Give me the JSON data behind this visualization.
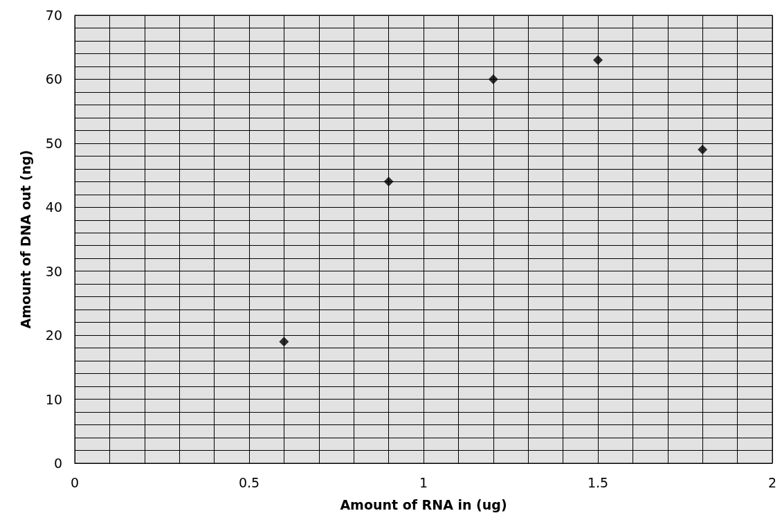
{
  "chart_data": {
    "type": "scatter",
    "xlabel": "Amount of RNA in (ug)",
    "ylabel": "Amount of DNA out (ng)",
    "x": [
      0.6,
      0.9,
      1.2,
      1.5,
      1.8
    ],
    "series": [
      {
        "color": "#000000",
        "values": [
          19,
          44,
          60,
          63,
          49
        ]
      }
    ],
    "marker": "diamond",
    "grid": true,
    "xlim": [
      0,
      2
    ],
    "xticks": [
      0,
      {
        "value": 0.1,
        "label": null
      },
      {
        "value": 0.2,
        "label": null
      },
      {
        "value": 0.3,
        "label": null
      },
      {
        "value": 0.4,
        "label": null
      },
      0.5,
      {
        "value": 0.6,
        "label": null
      },
      {
        "value": 0.7,
        "label": null
      },
      {
        "value": 0.8,
        "label": null
      },
      {
        "value": 0.9,
        "label": null
      },
      1,
      {
        "value": 1.1,
        "label": null
      },
      {
        "value": 1.2,
        "label": null
      },
      {
        "value": 1.3,
        "label": null
      },
      {
        "value": 1.4,
        "label": null
      },
      1.5,
      {
        "value": 1.6,
        "label": null
      },
      {
        "value": 1.7,
        "label": null
      },
      {
        "value": 1.8,
        "label": null
      },
      {
        "value": 1.9,
        "label": null
      },
      2
    ],
    "ylim": [
      0,
      70
    ],
    "yticks": [
      0,
      {
        "value": 2,
        "label": null
      },
      {
        "value": 4,
        "label": null
      },
      {
        "value": 6,
        "label": null
      },
      {
        "value": 8,
        "label": null
      },
      10,
      {
        "value": 12,
        "label": null
      },
      {
        "value": 14,
        "label": null
      },
      {
        "value": 16,
        "label": null
      },
      {
        "value": 18,
        "label": null
      },
      20,
      {
        "value": 22,
        "label": null
      },
      {
        "value": 24,
        "label": null
      },
      {
        "value": 26,
        "label": null
      },
      {
        "value": 28,
        "label": null
      },
      30,
      {
        "value": 32,
        "label": null
      },
      {
        "value": 34,
        "label": null
      },
      {
        "value": 36,
        "label": null
      },
      {
        "value": 38,
        "label": null
      },
      40,
      {
        "value": 42,
        "label": null
      },
      {
        "value": 44,
        "label": null
      },
      {
        "value": 46,
        "label": null
      },
      {
        "value": 48,
        "label": null
      },
      50,
      {
        "value": 52,
        "label": null
      },
      {
        "value": 54,
        "label": null
      },
      {
        "value": 56,
        "label": null
      },
      {
        "value": 58,
        "label": null
      },
      60,
      {
        "value": 62,
        "label": null
      },
      {
        "value": 64,
        "label": null
      },
      {
        "value": 66,
        "label": null
      },
      {
        "value": 68,
        "label": null
      },
      70
    ]
  }
}
